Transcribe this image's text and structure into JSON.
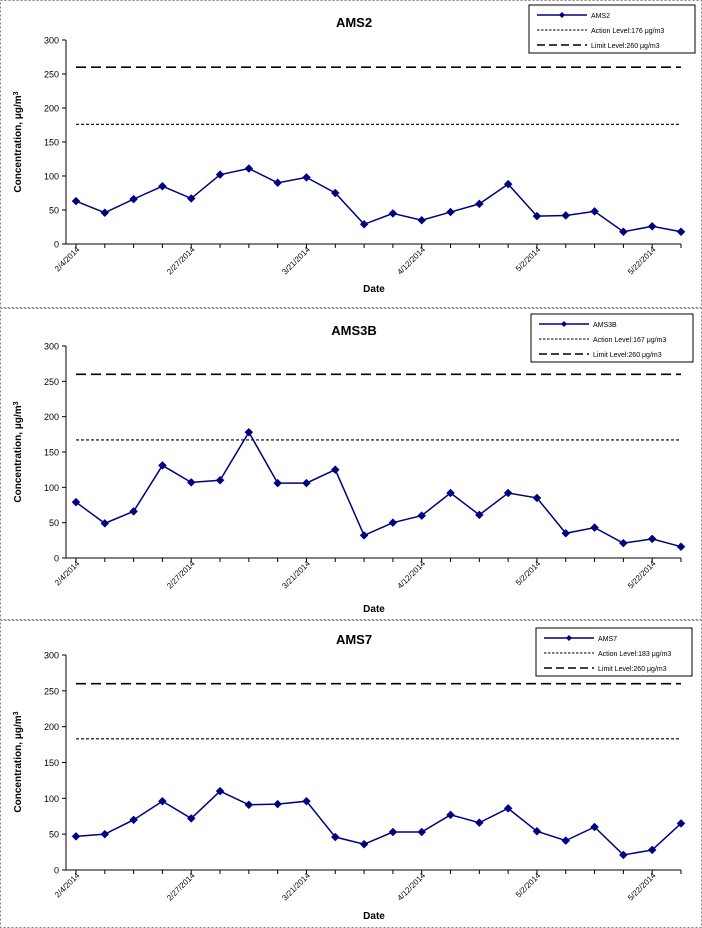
{
  "chart_data": [
    {
      "type": "line",
      "title": "AMS2",
      "xlabel": "Date",
      "ylabel": "Concentration, μg/m",
      "ylabel_superscript": "3",
      "ylim": [
        0,
        300
      ],
      "yticks": [
        0,
        50,
        100,
        150,
        200,
        250,
        300
      ],
      "x_tick_labels": [
        "2/4/2014",
        "2/27/2014",
        "3/21/2014",
        "4/12/2014",
        "5/2/2014",
        "5/22/2014"
      ],
      "x_tick_positions": [
        0,
        4,
        8,
        12,
        16,
        20
      ],
      "grid": false,
      "legend_position": "top-right",
      "series": [
        {
          "name": "AMS2",
          "color": "#000080",
          "marker": "diamond",
          "values": [
            63,
            46,
            66,
            85,
            67,
            102,
            111,
            90,
            98,
            75,
            29,
            45,
            35,
            47,
            59,
            88,
            41,
            42,
            48,
            18,
            26,
            18
          ]
        }
      ],
      "reference_lines": [
        {
          "name": "Action Level:176 μg/m3",
          "value": 176,
          "style": "dotted"
        },
        {
          "name": "Limit Level:260 μg/m3",
          "value": 260,
          "style": "dashed"
        }
      ]
    },
    {
      "type": "line",
      "title": "AMS3B",
      "xlabel": "Date",
      "ylabel": "Concentration, μg/m",
      "ylabel_superscript": "3",
      "ylim": [
        0,
        300
      ],
      "yticks": [
        0,
        50,
        100,
        150,
        200,
        250,
        300
      ],
      "x_tick_labels": [
        "2/4/2014",
        "2/27/2014",
        "3/21/2014",
        "4/12/2014",
        "5/2/2014",
        "5/22/2014"
      ],
      "x_tick_positions": [
        0,
        4,
        8,
        12,
        16,
        20
      ],
      "grid": false,
      "legend_position": "top-right",
      "series": [
        {
          "name": "AMS3B",
          "color": "#000080",
          "marker": "diamond",
          "values": [
            79,
            49,
            66,
            131,
            107,
            110,
            178,
            106,
            106,
            125,
            32,
            50,
            60,
            92,
            61,
            92,
            85,
            35,
            43,
            21,
            27,
            16
          ]
        }
      ],
      "reference_lines": [
        {
          "name": "Action Level:167 μg/m3",
          "value": 167,
          "style": "dotted"
        },
        {
          "name": "Limit Level:260 μg/m3",
          "value": 260,
          "style": "dashed"
        }
      ]
    },
    {
      "type": "line",
      "title": "AMS7",
      "xlabel": "Date",
      "ylabel": "Concentration, μg/m",
      "ylabel_superscript": "3",
      "ylim": [
        0,
        300
      ],
      "yticks": [
        0,
        50,
        100,
        150,
        200,
        250,
        300
      ],
      "x_tick_labels": [
        "2/4/2014",
        "2/27/2014",
        "3/21/2014",
        "4/12/2014",
        "5/2/2014",
        "5/22/2014"
      ],
      "x_tick_positions": [
        0,
        4,
        8,
        12,
        16,
        20
      ],
      "grid": false,
      "legend_position": "top-right",
      "series": [
        {
          "name": "AMS7",
          "color": "#000080",
          "marker": "diamond",
          "values": [
            47,
            50,
            70,
            96,
            72,
            110,
            91,
            92,
            96,
            46,
            36,
            53,
            53,
            77,
            66,
            86,
            54,
            41,
            60,
            21,
            28,
            65
          ]
        }
      ],
      "reference_lines": [
        {
          "name": "Action Level:183 μg/m3",
          "value": 183,
          "style": "dotted"
        },
        {
          "name": "Limit Level:260 μg/m3",
          "value": 260,
          "style": "dashed"
        }
      ]
    }
  ]
}
